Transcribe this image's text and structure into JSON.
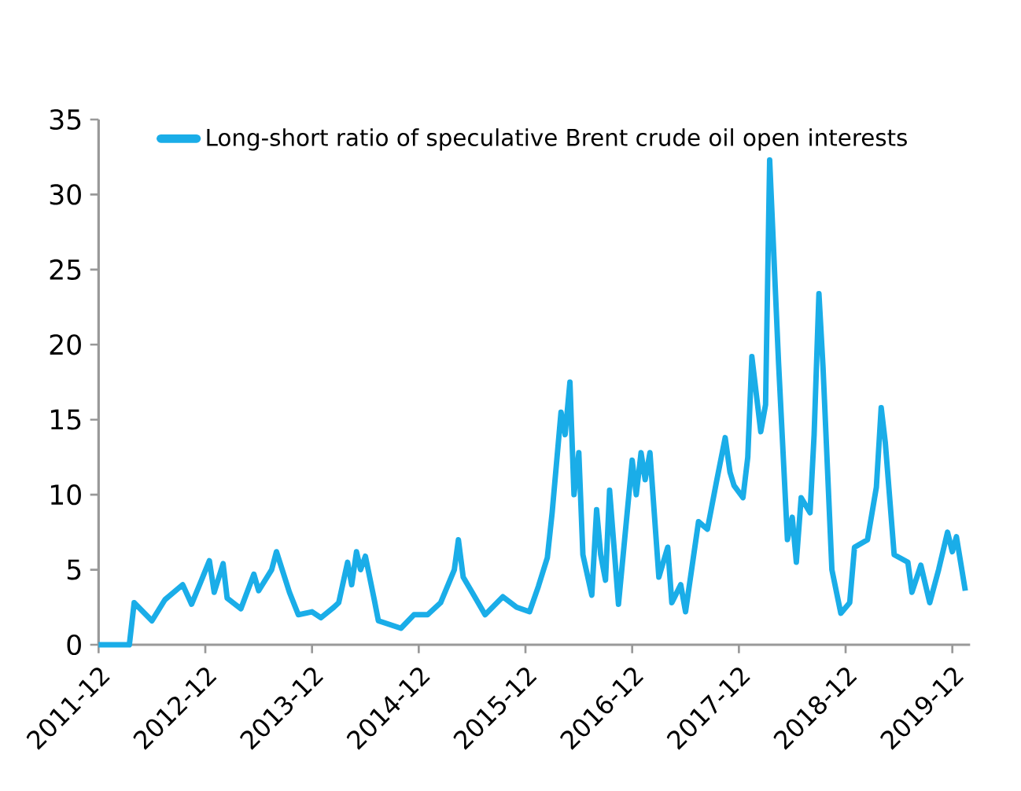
{
  "chart_data": {
    "type": "line",
    "x": [
      "2011-12-01",
      "2012-03-15",
      "2012-04-01",
      "2012-06-01",
      "2012-07-15",
      "2012-09-15",
      "2012-10-15",
      "2012-12-15",
      "2013-01-01",
      "2013-02-01",
      "2013-02-15",
      "2013-04-01",
      "2013-05-15",
      "2013-06-01",
      "2013-07-15",
      "2013-08-01",
      "2013-09-15",
      "2013-10-15",
      "2013-12-01",
      "2014-01-01",
      "2014-02-15",
      "2014-03-01",
      "2014-04-01",
      "2014-04-15",
      "2014-05-01",
      "2014-05-15",
      "2014-06-01",
      "2014-07-01",
      "2014-07-15",
      "2014-10-01",
      "2014-11-15",
      "2015-01-01",
      "2015-02-15",
      "2015-04-01",
      "2015-04-15",
      "2015-05-01",
      "2015-06-01",
      "2015-07-15",
      "2015-09-15",
      "2015-11-01",
      "2015-12-15",
      "2016-01-15",
      "2016-02-15",
      "2016-03-01",
      "2016-04-01",
      "2016-04-15",
      "2016-05-01",
      "2016-05-15",
      "2016-06-01",
      "2016-06-15",
      "2016-07-15",
      "2016-08-01",
      "2016-08-15",
      "2016-09-01",
      "2016-09-15",
      "2016-10-15",
      "2016-12-01",
      "2016-12-15",
      "2017-01-01",
      "2017-01-15",
      "2017-02-01",
      "2017-03-01",
      "2017-04-01",
      "2017-04-15",
      "2017-05-15",
      "2017-06-01",
      "2017-07-15",
      "2017-08-15",
      "2017-09-15",
      "2017-10-15",
      "2017-11-01",
      "2017-11-15",
      "2017-12-15",
      "2018-01-01",
      "2018-01-15",
      "2018-02-15",
      "2018-03-01",
      "2018-03-15",
      "2018-04-15",
      "2018-05-15",
      "2018-06-01",
      "2018-06-15",
      "2018-07-01",
      "2018-08-01",
      "2018-08-15",
      "2018-09-01",
      "2018-09-15",
      "2018-10-15",
      "2018-11-15",
      "2018-12-15",
      "2019-01-01",
      "2019-02-15",
      "2019-03-15",
      "2019-04-01",
      "2019-04-15",
      "2019-05-15",
      "2019-07-01",
      "2019-07-15",
      "2019-08-15",
      "2019-09-15",
      "2019-10-15",
      "2019-11-15",
      "2019-12-01",
      "2019-12-15",
      "2020-01-15"
    ],
    "series": [
      {
        "name": "Long-short ratio of speculative Brent crude oil open interests",
        "color": "#1aade8",
        "values": [
          0,
          0,
          2.8,
          1.6,
          3.0,
          4.0,
          2.7,
          5.6,
          3.5,
          5.4,
          3.1,
          2.4,
          4.7,
          3.6,
          5.0,
          6.2,
          3.5,
          2.0,
          2.2,
          1.8,
          2.5,
          2.8,
          5.5,
          4.0,
          6.2,
          5.0,
          5.9,
          3.0,
          1.6,
          1.1,
          2.0,
          2.0,
          2.8,
          5.0,
          7.0,
          4.5,
          3.5,
          2.0,
          3.2,
          2.5,
          2.2,
          3.9,
          5.8,
          8.8,
          15.5,
          14,
          17.5,
          10,
          12.8,
          6,
          3.3,
          9,
          6,
          4.3,
          10.3,
          2.7,
          12.3,
          10,
          12.8,
          11,
          12.8,
          4.5,
          6.5,
          2.8,
          4.0,
          2.2,
          8.2,
          7.7,
          10.8,
          13.8,
          11.5,
          10.6,
          9.8,
          12.5,
          19.2,
          14.2,
          16.0,
          32.3,
          18.8,
          7.0,
          8.5,
          5.5,
          9.8,
          8.8,
          14,
          23.4,
          18.5,
          5.0,
          2.1,
          2.8,
          6.5,
          7.0,
          10.5,
          15.8,
          13.5,
          6.0,
          5.5,
          3.5,
          5.3,
          2.8,
          5.0,
          7.5,
          6.2,
          7.2,
          3.6
        ]
      }
    ],
    "xlim": [
      "2011-12",
      "2020-02"
    ],
    "xticks": [
      "2011-12",
      "2012-12",
      "2013-12",
      "2014-12",
      "2015-12",
      "2016-12",
      "2017-12",
      "2018-12",
      "2019-12"
    ],
    "ylim": [
      0,
      35
    ],
    "yticks": [
      0,
      5,
      10,
      15,
      20,
      25,
      30,
      35
    ],
    "legend": "top",
    "marker": "none",
    "line_style": "solid",
    "grid": false
  }
}
